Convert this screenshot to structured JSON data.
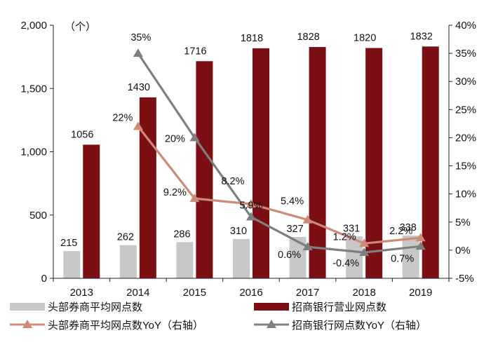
{
  "chart_data": {
    "type": "bar+line",
    "unit_label": "（个）",
    "categories": [
      "2013",
      "2014",
      "2015",
      "2016",
      "2017",
      "2018",
      "2019"
    ],
    "left_axis": {
      "ylim": [
        0,
        2000
      ],
      "ticks": [
        0,
        500,
        1000,
        1500,
        2000
      ],
      "tick_labels": [
        "0",
        "500",
        "1,000",
        "1,500",
        "2,000"
      ]
    },
    "right_axis": {
      "ylim": [
        -5,
        40
      ],
      "ticks": [
        -5,
        0,
        5,
        10,
        15,
        20,
        25,
        30,
        35,
        40
      ],
      "tick_labels": [
        "-5%",
        "0%",
        "5%",
        "10%",
        "15%",
        "20%",
        "25%",
        "30%",
        "35%",
        "40%"
      ]
    },
    "series": [
      {
        "name": "头部券商平均网点数",
        "type": "bar",
        "axis": "left",
        "color": "#c8c8c8",
        "values": [
          215,
          262,
          286,
          310,
          327,
          331,
          338
        ],
        "labels": [
          "215",
          "262",
          "286",
          "310",
          "327",
          "331",
          "338"
        ]
      },
      {
        "name": "招商银行营业网点数",
        "type": "bar",
        "axis": "left",
        "color": "#7b0f13",
        "values": [
          1056,
          1430,
          1716,
          1818,
          1828,
          1820,
          1832
        ],
        "labels": [
          "1056",
          "1430",
          "1716",
          "1818",
          "1828",
          "1820",
          "1832"
        ]
      },
      {
        "name": "头部券商平均网点数YoY（右轴）",
        "type": "line",
        "axis": "right",
        "color": "#cd8a78",
        "values": [
          null,
          22,
          9.2,
          8.2,
          5.4,
          1.2,
          2.2
        ],
        "labels": [
          null,
          "22%",
          "9.2%",
          "8.2%",
          "5.4%",
          "1.2%",
          "2.2%"
        ]
      },
      {
        "name": "招商银行网点数YoY（右轴）",
        "type": "line",
        "axis": "right",
        "color": "#7f7f7f",
        "values": [
          null,
          35,
          20,
          5.9,
          0.6,
          -0.4,
          0.7
        ],
        "labels": [
          null,
          "35%",
          "20%",
          "5.9%",
          "0.6%",
          "-0.4%",
          "0.7%"
        ]
      }
    ]
  }
}
